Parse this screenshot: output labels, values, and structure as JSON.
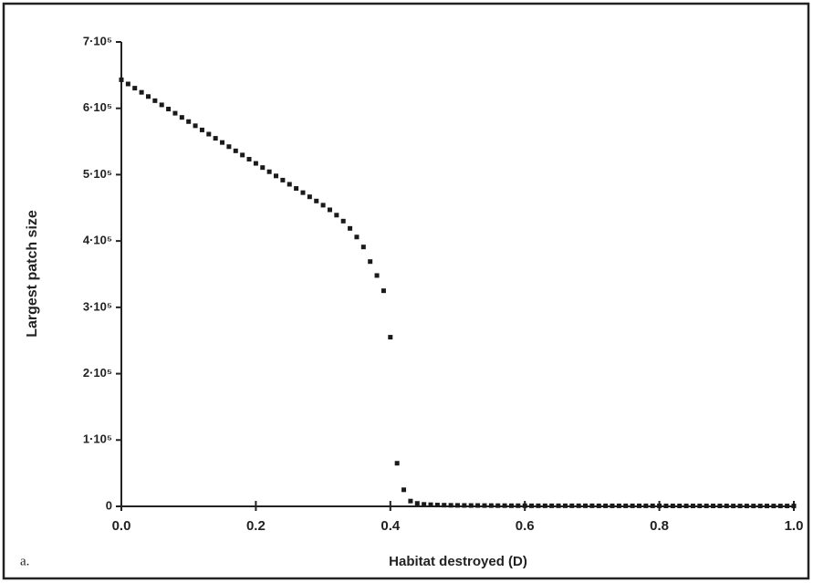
{
  "chart_data": {
    "type": "scatter",
    "panel_label": "a.",
    "xlabel": "Habitat destroyed (D)",
    "ylabel": "Largest  patch size",
    "color": "#1a1a1a",
    "xlim": [
      0,
      1
    ],
    "ylim": [
      0,
      700000
    ],
    "xticks": [
      {
        "value": 0,
        "label": "0.0"
      },
      0.2,
      0.4,
      0.6,
      0.8,
      {
        "value": 1,
        "label": "1.0"
      }
    ],
    "yticks": [
      0,
      {
        "value": 100000,
        "label": "1·10⁵"
      },
      {
        "value": 200000,
        "label": "2·10⁵"
      },
      {
        "value": 300000,
        "label": "3·10⁵"
      },
      {
        "value": 400000,
        "label": "4·10⁵"
      },
      {
        "value": 500000,
        "label": "5·10⁵"
      },
      {
        "value": 600000,
        "label": "6·10⁵"
      },
      {
        "value": 700000,
        "label": "7·10⁵"
      }
    ],
    "x": [
      0,
      0.01,
      0.02,
      0.03,
      0.04,
      0.05,
      0.06,
      0.07,
      0.08,
      0.09,
      0.1,
      0.11,
      0.12,
      0.13,
      0.14,
      0.15,
      0.16,
      0.17,
      0.18,
      0.19,
      0.2,
      0.21,
      0.22,
      0.23,
      0.24,
      0.25,
      0.26,
      0.27,
      0.28,
      0.29,
      0.3,
      0.31,
      0.32,
      0.33,
      0.34,
      0.35,
      0.36,
      0.37,
      0.38,
      0.39,
      0.4,
      0.41,
      0.42,
      0.43,
      0.44,
      0.45,
      0.46,
      0.47,
      0.48,
      0.49,
      0.5,
      0.51,
      0.52,
      0.53,
      0.54,
      0.55,
      0.56,
      0.57,
      0.58,
      0.59,
      0.6,
      0.61,
      0.62,
      0.63,
      0.64,
      0.65,
      0.66,
      0.67,
      0.68,
      0.69,
      0.7,
      0.71,
      0.72,
      0.73,
      0.74,
      0.75,
      0.76,
      0.77,
      0.78,
      0.79,
      0.8,
      0.81,
      0.82,
      0.83,
      0.84,
      0.85,
      0.86,
      0.87,
      0.88,
      0.89,
      0.9,
      0.91,
      0.92,
      0.93,
      0.94,
      0.95,
      0.96,
      0.97,
      0.98,
      0.99,
      1
    ],
    "values": [
      643000,
      636700,
      630400,
      624100,
      617800,
      611500,
      605200,
      598900,
      592600,
      586300,
      580000,
      573700,
      567400,
      561100,
      554800,
      548500,
      542200,
      535900,
      529600,
      523300,
      517000,
      510700,
      504400,
      498100,
      491800,
      485500,
      479200,
      472900,
      466600,
      460300,
      454000,
      447000,
      439000,
      430000,
      419000,
      406000,
      391000,
      369000,
      348000,
      325000,
      255000,
      65000,
      25000,
      8000,
      4500,
      3000,
      2500,
      2000,
      1800,
      1600,
      1500,
      1400,
      1300,
      1300,
      1200,
      1200,
      1100,
      1100,
      1000,
      1000,
      1000,
      900,
      900,
      900,
      900,
      900,
      900,
      900,
      900,
      900,
      900,
      800,
      800,
      800,
      800,
      800,
      800,
      800,
      800,
      800,
      800,
      700,
      700,
      700,
      700,
      700,
      700,
      700,
      700,
      700,
      700,
      600,
      600,
      600,
      600,
      600,
      600,
      600,
      600,
      600,
      600
    ]
  }
}
